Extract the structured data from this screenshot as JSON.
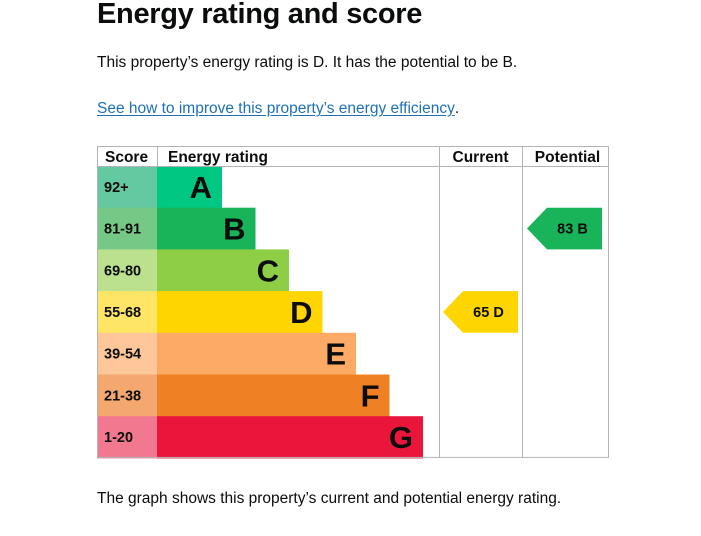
{
  "page": {
    "title": "Energy rating and score",
    "summary": "This property’s energy rating is D. It has the potential to be B.",
    "improve_link": "See how to improve this property’s energy efficiency",
    "link_suffix": ".",
    "footer_text": "The graph shows this property’s current and potential energy rating."
  },
  "chart_data": {
    "type": "bar",
    "headers": {
      "score": "Score",
      "rating": "Energy rating",
      "current": "Current",
      "potential": "Potential"
    },
    "bands": [
      {
        "score": "92+",
        "letter": "A",
        "color": "#00c781",
        "score_color": "#64c8a0"
      },
      {
        "score": "81-91",
        "letter": "B",
        "color": "#19b459",
        "score_color": "#76c887"
      },
      {
        "score": "69-80",
        "letter": "C",
        "color": "#8dce46",
        "score_color": "#bbe08e"
      },
      {
        "score": "55-68",
        "letter": "D",
        "color": "#ffd500",
        "score_color": "#ffe566"
      },
      {
        "score": "39-54",
        "letter": "E",
        "color": "#fcaa65",
        "score_color": "#fdc79a"
      },
      {
        "score": "21-38",
        "letter": "F",
        "color": "#ef8023",
        "score_color": "#f4a86f"
      },
      {
        "score": "1-20",
        "letter": "G",
        "color": "#e9153b",
        "score_color": "#f27890"
      }
    ],
    "current": {
      "score": 65,
      "letter": "D",
      "label": "65  D"
    },
    "potential": {
      "score": 83,
      "letter": "B",
      "label": "83  B"
    },
    "border_color": "#b1b4b6"
  }
}
